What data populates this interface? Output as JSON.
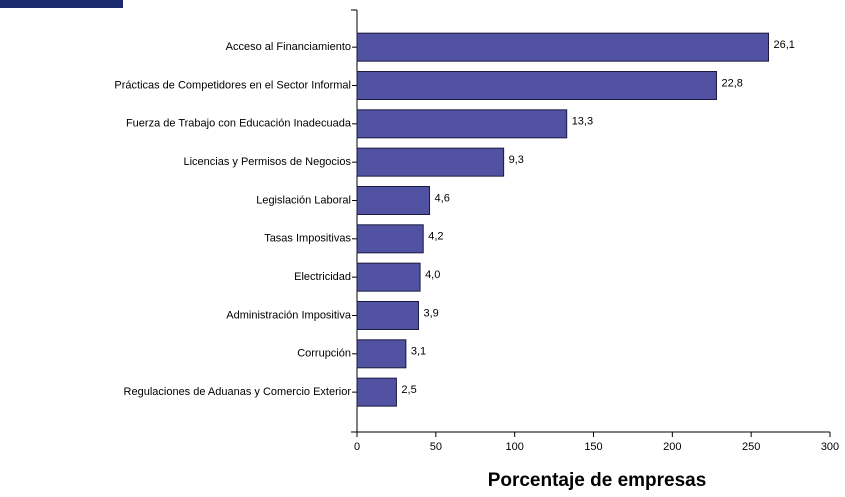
{
  "chart_data": {
    "type": "barh",
    "xlabel": "Porcentaje de empresas",
    "categories": [
      "Acceso al Financiamiento",
      "Prácticas de Competidores en el Sector Informal",
      "Fuerza de Trabajo con Educación Inadecuada",
      "Licencias y Permisos de Negocios",
      "Legislación Laboral",
      "Tasas Impositivas",
      "Electricidad",
      "Administración Impositiva",
      "Corrupción",
      "Regulaciones de Aduanas y Comercio Exterior"
    ],
    "values": [
      261,
      228,
      133,
      93,
      46,
      42,
      40,
      39,
      31,
      25
    ],
    "value_labels": [
      "26,1",
      "22,8",
      "13,3",
      "9,3",
      "4,6",
      "4,2",
      "4,0",
      "3,9",
      "3,1",
      "2,5"
    ],
    "color": "#5252a2",
    "xlim": [
      0,
      300
    ],
    "xticks": [
      0,
      50,
      100,
      150,
      200,
      250,
      300
    ]
  }
}
